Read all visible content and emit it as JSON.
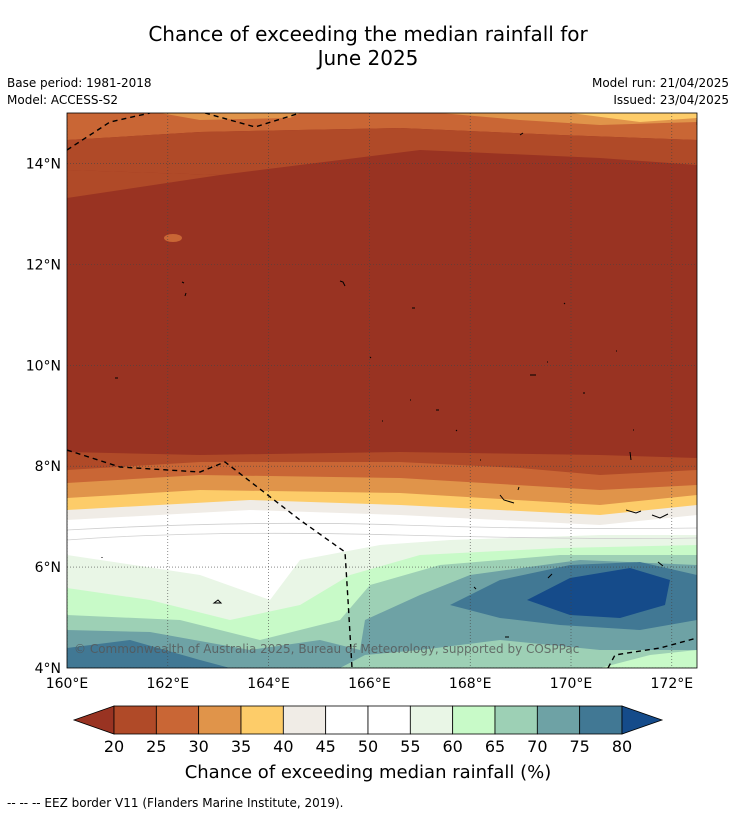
{
  "title_line1": "Chance of exceeding the median rainfall for",
  "title_line2": "June 2025",
  "base_period": "Base period: 1981-2018",
  "model": "Model: ACCESS-S2",
  "model_run": "Model run: 21/04/2025",
  "issued": "Issued: 23/04/2025",
  "copyright": "© Commonwealth of Australia 2025, Bureau of Meteorology, supported by COSPPac",
  "footnote": "--  --  -- EEZ border V11 (Flanders Marine Institute, 2019).",
  "map": {
    "lon_range": [
      160,
      172.5
    ],
    "lat_range": [
      4,
      15
    ],
    "lon_ticks": [
      "160°E",
      "162°E",
      "164°E",
      "166°E",
      "168°E",
      "170°E",
      "172°E"
    ],
    "lat_ticks": [
      "4°N",
      "6°N",
      "8°N",
      "10°N",
      "12°N",
      "14°N"
    ],
    "grid": true
  },
  "colorbar": {
    "label": "Chance of exceeding median rainfall (%)",
    "ticks": [
      "20",
      "25",
      "30",
      "35",
      "40",
      "45",
      "50",
      "55",
      "60",
      "65",
      "70",
      "75",
      "80"
    ],
    "colors": [
      "#993322",
      "#b04a28",
      "#c96635",
      "#e0944a",
      "#fdcc69",
      "#f0ece6",
      "#ffffff",
      "#ffffff",
      "#e9f6e6",
      "#c8fac8",
      "#9dd0b5",
      "#6ea2a5",
      "#417894",
      "#154b8a"
    ],
    "extend": "both"
  }
}
